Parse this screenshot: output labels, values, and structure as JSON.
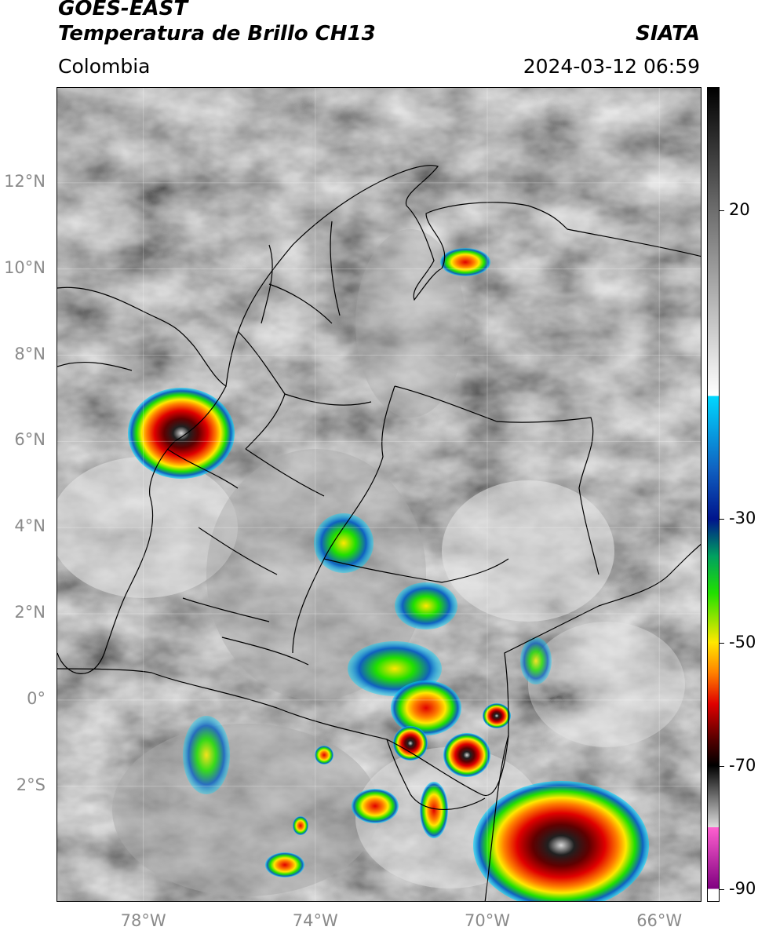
{
  "header": {
    "title_line1": "GOES-EAST",
    "title_line2": "Temperatura de Brillo CH13",
    "agency": "SIATA",
    "region": "Colombia",
    "timestamp": "2024-03-12 06:59"
  },
  "map": {
    "lat_labels": [
      {
        "label": "12°N",
        "lat": 12
      },
      {
        "label": "10°N",
        "lat": 10
      },
      {
        "label": "8°N",
        "lat": 8
      },
      {
        "label": "6°N",
        "lat": 6
      },
      {
        "label": "4°N",
        "lat": 4
      },
      {
        "label": "2°N",
        "lat": 2
      },
      {
        "label": "0°",
        "lat": 0
      },
      {
        "label": "2°S",
        "lat": -2
      }
    ],
    "lon_labels": [
      {
        "label": "78°W",
        "lon": -78
      },
      {
        "label": "74°W",
        "lon": -74
      },
      {
        "label": "70°W",
        "lon": -70
      },
      {
        "label": "66°W",
        "lon": -66
      }
    ],
    "extent": {
      "lon_min": -80,
      "lon_max": -65,
      "lat_min": -4.7,
      "lat_max": 14.2
    },
    "cloud_colors": {
      "warm": "#5a5a5a",
      "mid": "#a8a8a8",
      "cool": "#e6e6e6"
    }
  },
  "colorbar": {
    "tick_labels": [
      {
        "label": "20",
        "value": 20
      },
      {
        "label": "-30",
        "value": -30
      },
      {
        "label": "-50",
        "value": -50
      },
      {
        "label": "-70",
        "value": -70
      },
      {
        "label": "-90",
        "value": -90
      }
    ],
    "vmin": -92,
    "vmax": 40,
    "stops": [
      {
        "value": 40,
        "color": "#000000"
      },
      {
        "value": 20,
        "color": "#6e6e6e"
      },
      {
        "value": -10,
        "color": "#ffffff"
      },
      {
        "value": -10.01,
        "color": "#00d8ff"
      },
      {
        "value": -22,
        "color": "#1060c0"
      },
      {
        "value": -30,
        "color": "#00148c"
      },
      {
        "value": -36,
        "color": "#00a060"
      },
      {
        "value": -42,
        "color": "#20e000"
      },
      {
        "value": -50,
        "color": "#ffe800"
      },
      {
        "value": -55,
        "color": "#ff8000"
      },
      {
        "value": -60,
        "color": "#e00000"
      },
      {
        "value": -66,
        "color": "#500000"
      },
      {
        "value": -70,
        "color": "#000000"
      },
      {
        "value": -80,
        "color": "#dcdcdc"
      },
      {
        "value": -80.01,
        "color": "#ff60d0"
      },
      {
        "value": -90,
        "color": "#800080"
      },
      {
        "value": -90.01,
        "color": "#ffffff"
      },
      {
        "value": -92,
        "color": "#ffffff"
      }
    ]
  }
}
